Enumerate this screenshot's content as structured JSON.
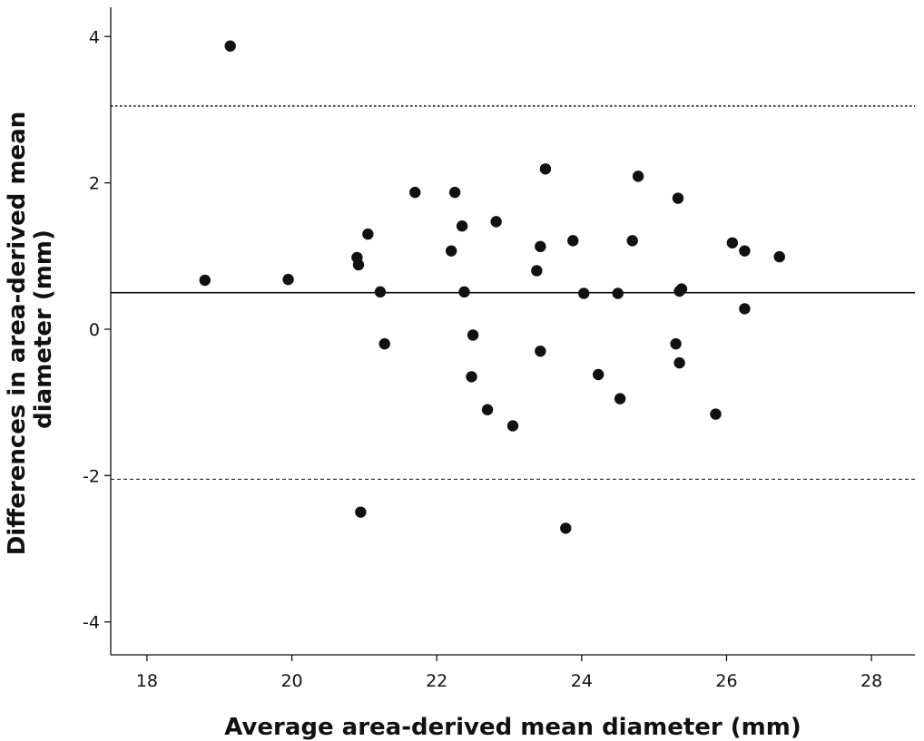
{
  "chart_data": {
    "type": "scatter",
    "title": "",
    "xlabel": "Average area-derived mean diameter (mm)",
    "ylabel_lines": [
      "Differences in area-derived mean",
      "diameter (mm)"
    ],
    "xlim": [
      17.5,
      28.6
    ],
    "ylim": [
      -4.45,
      4.4
    ],
    "xticks": [
      18,
      20,
      22,
      24,
      26,
      28
    ],
    "yticks": [
      -4,
      -2,
      0,
      2,
      4
    ],
    "grid": false,
    "reference_lines": [
      {
        "role": "mean",
        "y": 0.5,
        "style": "solid"
      },
      {
        "role": "upper-limit",
        "y": 3.05,
        "style": "dotted"
      },
      {
        "role": "lower-limit",
        "y": -2.05,
        "style": "dashed"
      }
    ],
    "points": [
      {
        "x": 18.8,
        "y": 0.67
      },
      {
        "x": 19.15,
        "y": 3.87
      },
      {
        "x": 19.95,
        "y": 0.68
      },
      {
        "x": 20.9,
        "y": 0.98
      },
      {
        "x": 20.92,
        "y": 0.88
      },
      {
        "x": 20.95,
        "y": -2.5
      },
      {
        "x": 21.05,
        "y": 1.3
      },
      {
        "x": 21.22,
        "y": 0.51
      },
      {
        "x": 21.28,
        "y": -0.2
      },
      {
        "x": 21.7,
        "y": 1.87
      },
      {
        "x": 22.2,
        "y": 1.07
      },
      {
        "x": 22.25,
        "y": 1.87
      },
      {
        "x": 22.35,
        "y": 1.41
      },
      {
        "x": 22.38,
        "y": 0.51
      },
      {
        "x": 22.48,
        "y": -0.65
      },
      {
        "x": 22.5,
        "y": -0.08
      },
      {
        "x": 22.7,
        "y": -1.1
      },
      {
        "x": 22.82,
        "y": 1.47
      },
      {
        "x": 23.05,
        "y": -1.32
      },
      {
        "x": 23.38,
        "y": 0.8
      },
      {
        "x": 23.43,
        "y": 1.13
      },
      {
        "x": 23.43,
        "y": -0.3
      },
      {
        "x": 23.5,
        "y": 2.19
      },
      {
        "x": 23.78,
        "y": -2.72
      },
      {
        "x": 23.88,
        "y": 1.21
      },
      {
        "x": 24.03,
        "y": 0.49
      },
      {
        "x": 24.23,
        "y": -0.62
      },
      {
        "x": 24.5,
        "y": 0.49
      },
      {
        "x": 24.53,
        "y": -0.95
      },
      {
        "x": 24.7,
        "y": 1.21
      },
      {
        "x": 24.78,
        "y": 2.09
      },
      {
        "x": 25.3,
        "y": -0.2
      },
      {
        "x": 25.33,
        "y": 1.79
      },
      {
        "x": 25.35,
        "y": 0.52
      },
      {
        "x": 25.35,
        "y": -0.46
      },
      {
        "x": 25.38,
        "y": 0.55
      },
      {
        "x": 25.85,
        "y": -1.16
      },
      {
        "x": 26.08,
        "y": 1.18
      },
      {
        "x": 26.25,
        "y": 1.07
      },
      {
        "x": 26.25,
        "y": 0.28
      },
      {
        "x": 26.73,
        "y": 0.99
      }
    ]
  }
}
